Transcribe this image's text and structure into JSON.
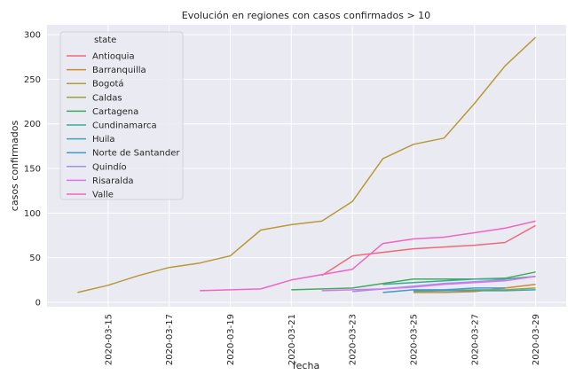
{
  "chart_data": {
    "type": "line",
    "title": "Evolución en regiones con casos confirmados > 10",
    "xlabel": "fecha",
    "ylabel": "casos confirmados",
    "x_tick_labels": [
      "2020-03-15",
      "2020-03-17",
      "2020-03-19",
      "2020-03-21",
      "2020-03-23",
      "2020-03-25",
      "2020-03-27",
      "2020-03-29"
    ],
    "y_ticks": [
      0,
      50,
      100,
      150,
      200,
      250,
      300
    ],
    "xlim": [
      "2020-03-13",
      "2020-03-30"
    ],
    "ylim": [
      -5,
      311
    ],
    "grid": true,
    "legend_title": "state",
    "legend_position": "top-left",
    "series": [
      {
        "name": "Antioquia",
        "color": "#f0697a",
        "points": [
          [
            "2020-03-22",
            30
          ],
          [
            "2020-03-23",
            52
          ],
          [
            "2020-03-24",
            56
          ],
          [
            "2020-03-25",
            60
          ],
          [
            "2020-03-26",
            62
          ],
          [
            "2020-03-27",
            64
          ],
          [
            "2020-03-28",
            67
          ],
          [
            "2020-03-29",
            86
          ]
        ]
      },
      {
        "name": "Barranquilla",
        "color": "#ce8a35",
        "points": [
          [
            "2020-03-25",
            11
          ],
          [
            "2020-03-26",
            11
          ],
          [
            "2020-03-27",
            12
          ],
          [
            "2020-03-28",
            16
          ],
          [
            "2020-03-29",
            20
          ]
        ]
      },
      {
        "name": "Bogotá",
        "color": "#b79a37",
        "points": [
          [
            "2020-03-14",
            11
          ],
          [
            "2020-03-15",
            19
          ],
          [
            "2020-03-16",
            30
          ],
          [
            "2020-03-17",
            39
          ],
          [
            "2020-03-18",
            44
          ],
          [
            "2020-03-19",
            52
          ],
          [
            "2020-03-20",
            81
          ],
          [
            "2020-03-21",
            87
          ],
          [
            "2020-03-22",
            91
          ],
          [
            "2020-03-23",
            113
          ],
          [
            "2020-03-24",
            161
          ],
          [
            "2020-03-25",
            177
          ],
          [
            "2020-03-26",
            184
          ],
          [
            "2020-03-27",
            223
          ],
          [
            "2020-03-28",
            265
          ],
          [
            "2020-03-29",
            297
          ]
        ]
      },
      {
        "name": "Caldas",
        "color": "#9ba43a",
        "points": [
          [
            "2020-03-25",
            12
          ],
          [
            "2020-03-26",
            13
          ],
          [
            "2020-03-27",
            14
          ],
          [
            "2020-03-28",
            14
          ],
          [
            "2020-03-29",
            16
          ]
        ]
      },
      {
        "name": "Cartagena",
        "color": "#41ab5d",
        "points": [
          [
            "2020-03-21",
            14
          ],
          [
            "2020-03-22",
            15
          ],
          [
            "2020-03-23",
            16
          ],
          [
            "2020-03-24",
            21
          ],
          [
            "2020-03-25",
            26
          ],
          [
            "2020-03-26",
            26
          ],
          [
            "2020-03-27",
            26
          ],
          [
            "2020-03-28",
            27
          ],
          [
            "2020-03-29",
            34
          ]
        ]
      },
      {
        "name": "Cundinamarca",
        "color": "#3aab95",
        "points": [
          [
            "2020-03-24",
            20
          ],
          [
            "2020-03-25",
            22
          ],
          [
            "2020-03-26",
            24
          ],
          [
            "2020-03-27",
            26
          ],
          [
            "2020-03-28",
            26
          ],
          [
            "2020-03-29",
            29
          ]
        ]
      },
      {
        "name": "Huila",
        "color": "#3ea5b4",
        "points": [
          [
            "2020-03-25",
            13
          ],
          [
            "2020-03-26",
            13
          ],
          [
            "2020-03-27",
            13
          ],
          [
            "2020-03-28",
            13
          ],
          [
            "2020-03-29",
            14
          ]
        ]
      },
      {
        "name": "Norte de Santander",
        "color": "#3c9dd4",
        "points": [
          [
            "2020-03-24",
            11
          ],
          [
            "2020-03-25",
            14
          ],
          [
            "2020-03-26",
            14
          ],
          [
            "2020-03-27",
            16
          ],
          [
            "2020-03-28",
            16
          ]
        ]
      },
      {
        "name": "Quindío",
        "color": "#9a92e8",
        "points": [
          [
            "2020-03-23",
            12
          ],
          [
            "2020-03-24",
            15
          ],
          [
            "2020-03-25",
            18
          ],
          [
            "2020-03-26",
            21
          ],
          [
            "2020-03-27",
            23
          ],
          [
            "2020-03-28",
            25
          ]
        ]
      },
      {
        "name": "Risaralda",
        "color": "#d976ea",
        "points": [
          [
            "2020-03-22",
            13
          ],
          [
            "2020-03-23",
            14
          ],
          [
            "2020-03-24",
            15
          ],
          [
            "2020-03-25",
            17
          ],
          [
            "2020-03-26",
            20
          ],
          [
            "2020-03-27",
            22
          ],
          [
            "2020-03-28",
            24
          ],
          [
            "2020-03-29",
            29
          ]
        ]
      },
      {
        "name": "Valle",
        "color": "#f065c4",
        "points": [
          [
            "2020-03-18",
            13
          ],
          [
            "2020-03-19",
            14
          ],
          [
            "2020-03-20",
            15
          ],
          [
            "2020-03-21",
            25
          ],
          [
            "2020-03-22",
            31
          ],
          [
            "2020-03-23",
            37
          ],
          [
            "2020-03-24",
            66
          ],
          [
            "2020-03-25",
            71
          ],
          [
            "2020-03-26",
            73
          ],
          [
            "2020-03-27",
            78
          ],
          [
            "2020-03-28",
            83
          ],
          [
            "2020-03-29",
            91
          ]
        ]
      }
    ]
  }
}
